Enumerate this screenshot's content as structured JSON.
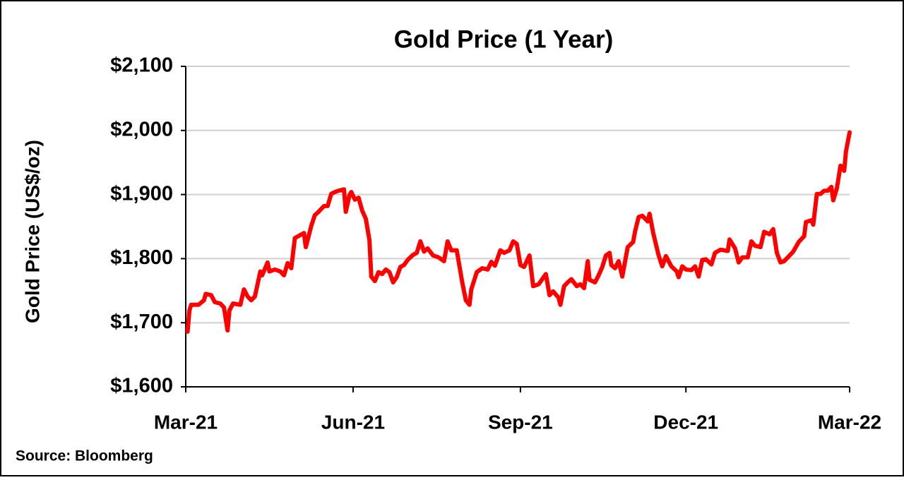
{
  "chart_data": {
    "type": "line",
    "title": "Gold Price (1 Year)",
    "y_label": "Gold Price (US$/oz)",
    "note": "Source: Bloomberg",
    "color": "#ff0000",
    "grid": true,
    "xlim": [
      0,
      365
    ],
    "ylim": [
      1600,
      2100
    ],
    "xticks": [
      {
        "value": 0,
        "label": "Mar-21"
      },
      {
        "value": 92,
        "label": "Jun-21"
      },
      {
        "value": 184,
        "label": "Sep-21"
      },
      {
        "value": 275,
        "label": "Dec-21"
      },
      {
        "value": 365,
        "label": "Mar-22"
      }
    ],
    "yticks": [
      {
        "value": 1600,
        "label": "$1,600"
      },
      {
        "value": 1700,
        "label": "$1,700"
      },
      {
        "value": 1800,
        "label": "$1,800"
      },
      {
        "value": 1900,
        "label": "$1,900"
      },
      {
        "value": 2000,
        "label": "$2,000"
      },
      {
        "value": 2100,
        "label": "$2,100"
      }
    ],
    "x": [
      1,
      2,
      3,
      7,
      10,
      11,
      14,
      16,
      19,
      21,
      23,
      24,
      26,
      30,
      32,
      34,
      36,
      38,
      41,
      42,
      45,
      46,
      49,
      52,
      54,
      56,
      58,
      60,
      65,
      66,
      69,
      71,
      73,
      76,
      78,
      80,
      82,
      84,
      87,
      88,
      90,
      91,
      93,
      95,
      97,
      99,
      101,
      102,
      104,
      106,
      108,
      110,
      112,
      114,
      116,
      118,
      120,
      122,
      125,
      127,
      129,
      131,
      133,
      136,
      139,
      142,
      144,
      146,
      149,
      152,
      154,
      156,
      157,
      160,
      163,
      166,
      168,
      170,
      173,
      175,
      178,
      180,
      182,
      184,
      186,
      189,
      191,
      194,
      196,
      198,
      200,
      202,
      205,
      206,
      208,
      210,
      212,
      215,
      217,
      219,
      221,
      222,
      225,
      227,
      229,
      231,
      233,
      234,
      236,
      238,
      240,
      243,
      246,
      247,
      249,
      251,
      254,
      255,
      257,
      260,
      262,
      264,
      267,
      270,
      271,
      273,
      275,
      278,
      280,
      282,
      284,
      286,
      289,
      291,
      294,
      298,
      299,
      302,
      304,
      306,
      309,
      311,
      313,
      316,
      318,
      321,
      323,
      325,
      327,
      329,
      332,
      334,
      337,
      340,
      341,
      344,
      345,
      347,
      349,
      351,
      353,
      355,
      356,
      358,
      360,
      362,
      363,
      365
    ],
    "values": [
      1686,
      1719,
      1728,
      1728,
      1735,
      1745,
      1743,
      1732,
      1730,
      1724,
      1688,
      1719,
      1730,
      1728,
      1752,
      1741,
      1735,
      1741,
      1780,
      1774,
      1794,
      1780,
      1783,
      1780,
      1774,
      1793,
      1785,
      1832,
      1840,
      1818,
      1851,
      1868,
      1873,
      1882,
      1882,
      1901,
      1904,
      1906,
      1908,
      1873,
      1899,
      1904,
      1892,
      1895,
      1875,
      1862,
      1829,
      1772,
      1765,
      1779,
      1776,
      1783,
      1779,
      1763,
      1771,
      1787,
      1790,
      1798,
      1806,
      1809,
      1827,
      1811,
      1816,
      1805,
      1802,
      1796,
      1827,
      1813,
      1813,
      1763,
      1735,
      1728,
      1752,
      1779,
      1785,
      1783,
      1795,
      1789,
      1813,
      1809,
      1813,
      1827,
      1823,
      1790,
      1787,
      1805,
      1757,
      1760,
      1768,
      1776,
      1743,
      1749,
      1739,
      1728,
      1757,
      1763,
      1768,
      1757,
      1760,
      1754,
      1796,
      1767,
      1763,
      1774,
      1787,
      1805,
      1809,
      1790,
      1785,
      1796,
      1772,
      1818,
      1826,
      1842,
      1865,
      1867,
      1858,
      1870,
      1840,
      1805,
      1788,
      1804,
      1788,
      1780,
      1771,
      1788,
      1783,
      1782,
      1788,
      1772,
      1798,
      1799,
      1791,
      1809,
      1814,
      1812,
      1830,
      1816,
      1794,
      1802,
      1802,
      1827,
      1820,
      1818,
      1842,
      1838,
      1846,
      1809,
      1794,
      1796,
      1805,
      1811,
      1826,
      1835,
      1857,
      1860,
      1853,
      1901,
      1901,
      1906,
      1906,
      1912,
      1891,
      1910,
      1945,
      1937,
      1967,
      1997
    ]
  }
}
